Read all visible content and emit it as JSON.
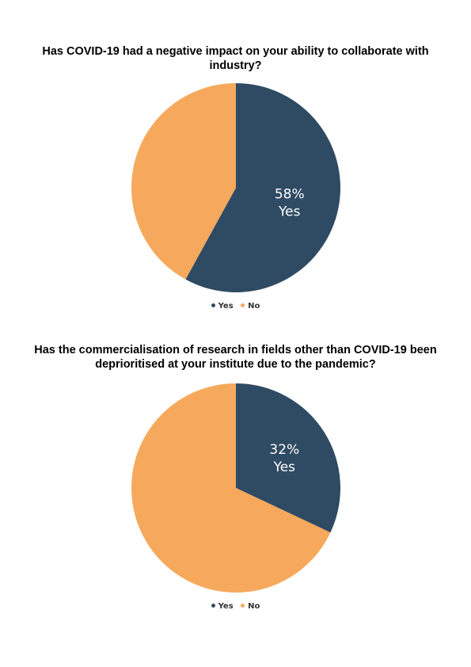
{
  "chart_data": [
    {
      "type": "pie",
      "title": "Has COVID-19 had a negative impact on your ability to collaborate with industry?",
      "categories": [
        "Yes",
        "No"
      ],
      "values": [
        58,
        42
      ],
      "colors": [
        "#2f4a63",
        "#f6a95c"
      ],
      "data_labels": [
        {
          "category": "Yes",
          "percent": "58%",
          "label": "Yes"
        }
      ],
      "legend": {
        "placement": "bottom",
        "entries": [
          "Yes",
          "No"
        ]
      }
    },
    {
      "type": "pie",
      "title": "Has the commercialisation of research in fields other than COVID-19 been deprioritised at your institute due to the pandemic?",
      "categories": [
        "Yes",
        "No"
      ],
      "values": [
        32,
        68
      ],
      "colors": [
        "#2f4a63",
        "#f6a95c"
      ],
      "data_labels": [
        {
          "category": "Yes",
          "percent": "32%",
          "label": "Yes"
        }
      ],
      "legend": {
        "placement": "bottom",
        "entries": [
          "Yes",
          "No"
        ]
      }
    }
  ]
}
